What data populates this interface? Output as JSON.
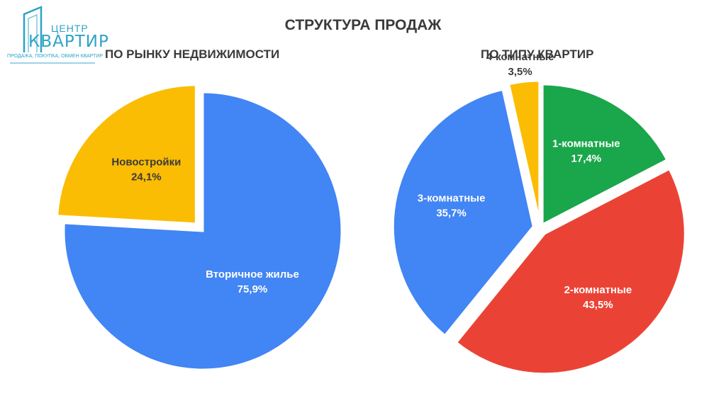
{
  "logo": {
    "line1": "ЦЕНТР",
    "line2": "КВАРТИР",
    "tagline": "ПРОДАЖА, ПОКУПКА, ОБМЕН КВАРТИР"
  },
  "title": "СТРУКТУРА ПРОДАЖ",
  "chart_data": [
    {
      "type": "pie",
      "title": "ПО РЫНКУ НЕДВИЖИМОСТИ",
      "slices": [
        {
          "label": "Вторичное жилье",
          "value": 75.9,
          "value_label": "75,9%",
          "color": "#4285f4",
          "label_color": "#ffffff"
        },
        {
          "label": "Новостройки",
          "value": 24.1,
          "value_label": "24,1%",
          "color": "#fbbc04",
          "label_color": "#3a3a3a",
          "exploded": true
        }
      ]
    },
    {
      "type": "pie",
      "title": "ПО ТИПУ КВАРТИР",
      "slices": [
        {
          "label": "1-комнатные",
          "value": 17.4,
          "value_label": "17,4%",
          "color": "#1aa64a",
          "label_color": "#ffffff"
        },
        {
          "label": "2-комнатные",
          "value": 43.5,
          "value_label": "43,5%",
          "color": "#ea4335",
          "label_color": "#ffffff"
        },
        {
          "label": "3-комнатные",
          "value": 35.7,
          "value_label": "35,7%",
          "color": "#4285f4",
          "label_color": "#ffffff"
        },
        {
          "label": "4-комнатные",
          "value": 3.5,
          "value_label": "3,5%",
          "color": "#fbbc04",
          "label_color": "#3a3a3a"
        }
      ]
    }
  ]
}
